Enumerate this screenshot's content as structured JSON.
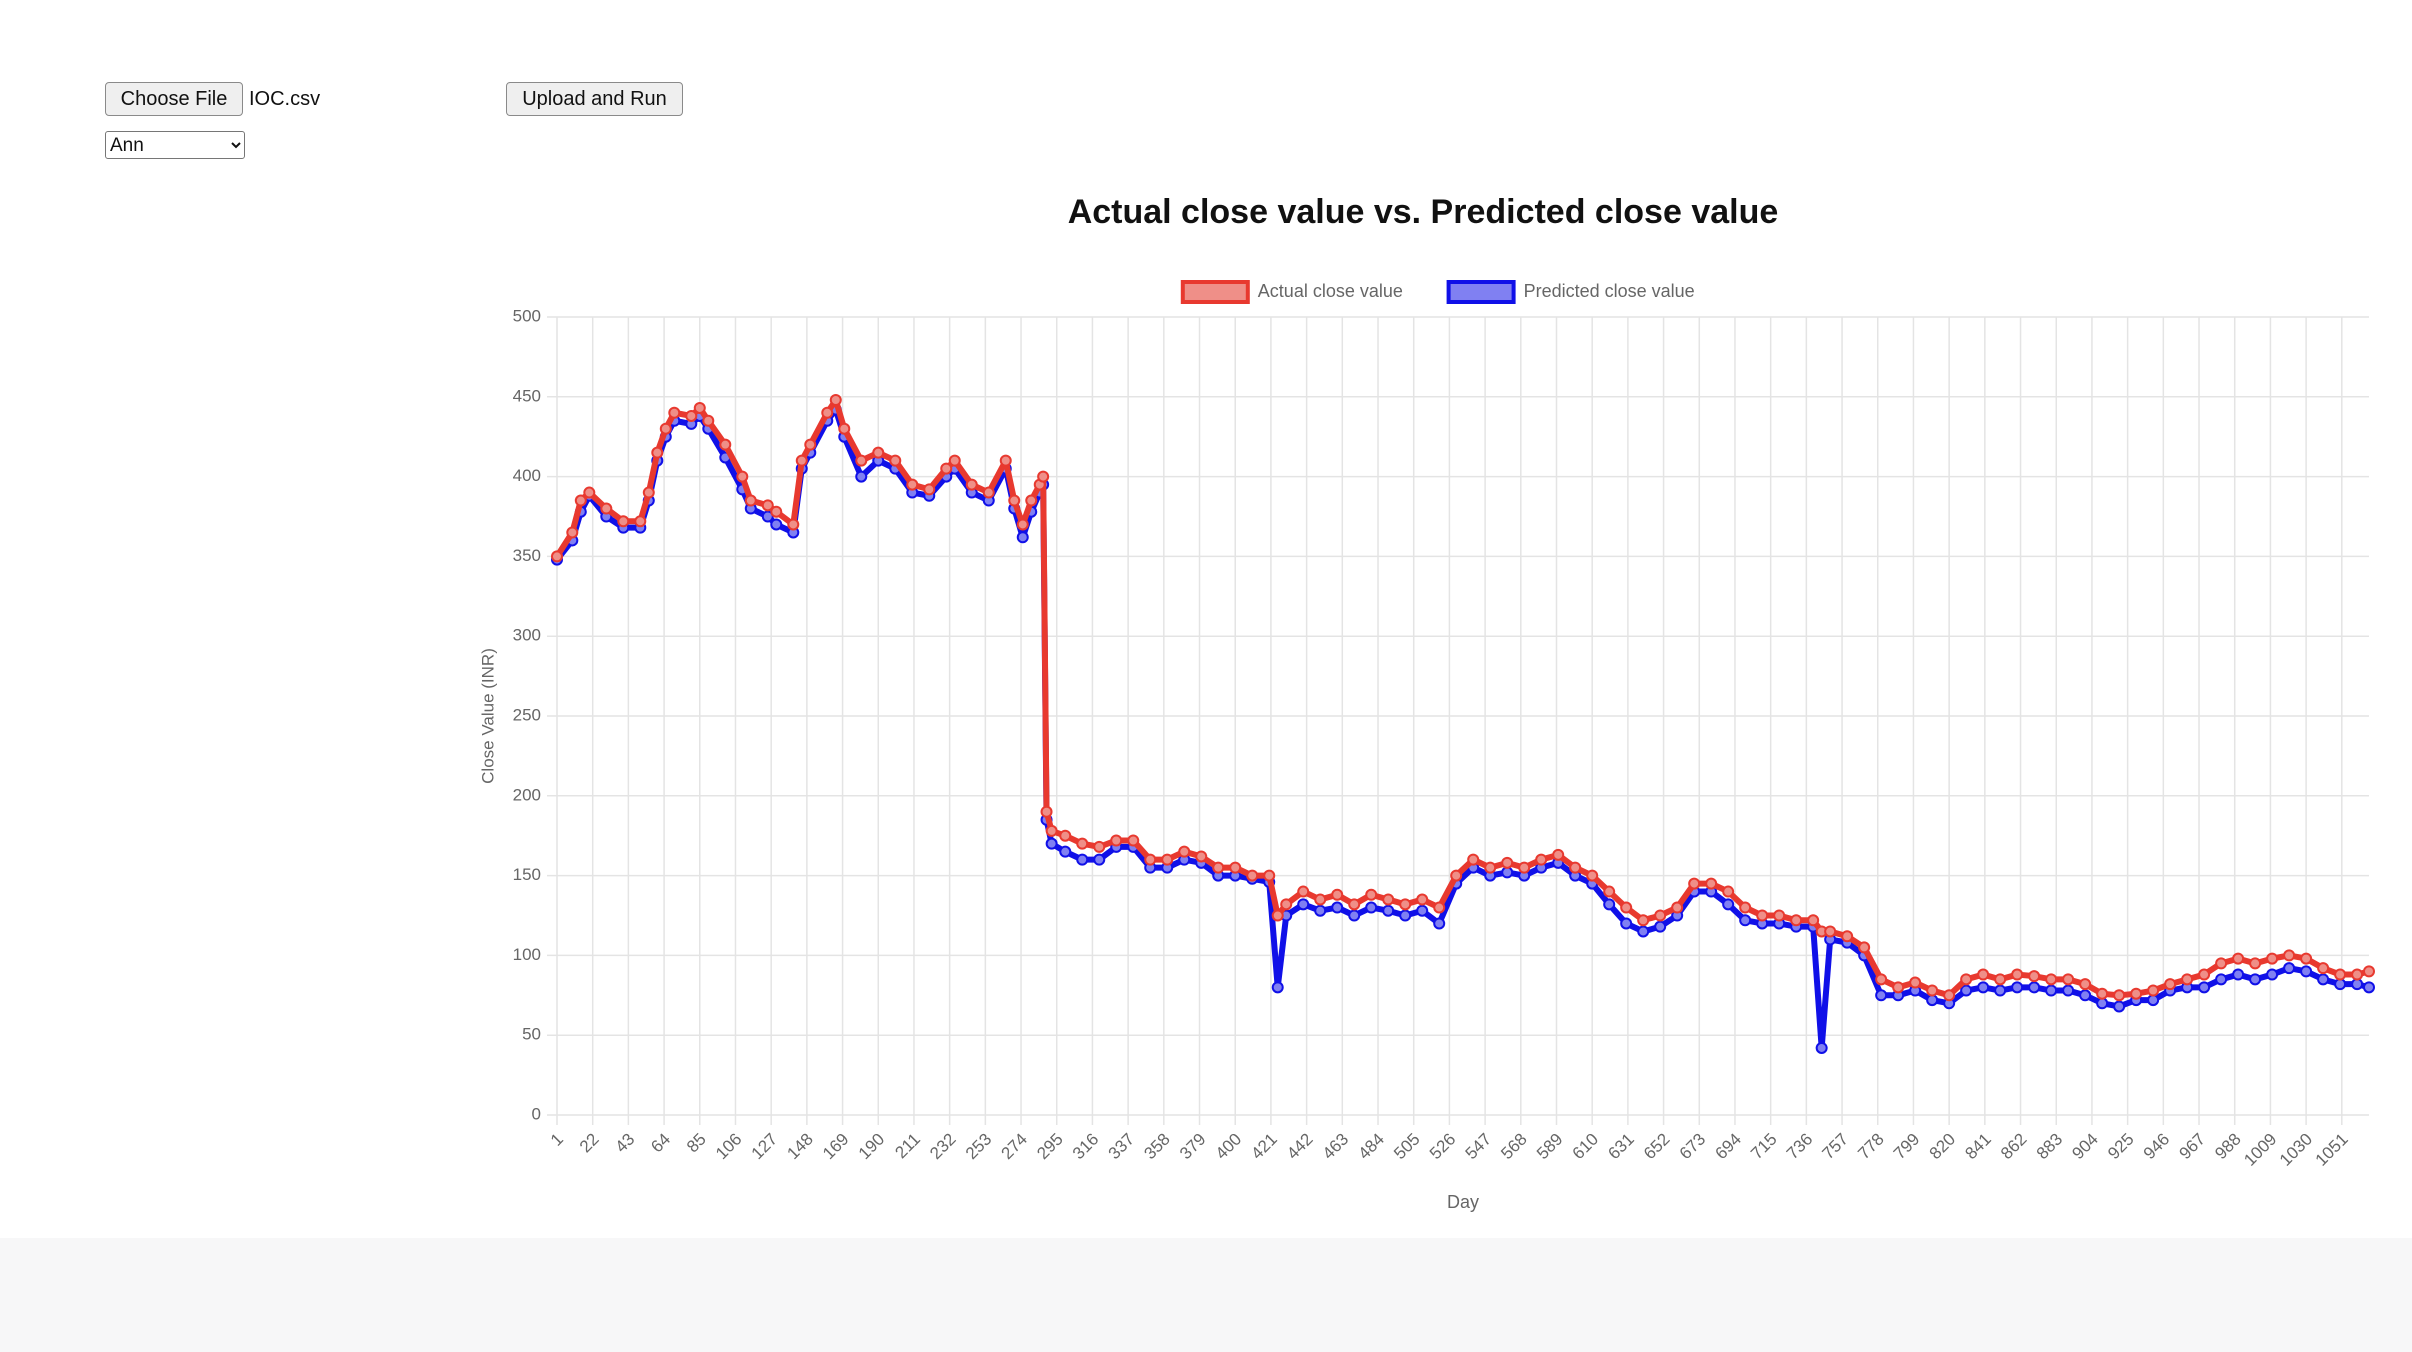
{
  "controls": {
    "file_button": "Choose File",
    "file_name": "IOC.csv",
    "upload_button": "Upload and Run",
    "model_select": "Ann"
  },
  "chart_data": {
    "type": "line",
    "title": "Actual close value vs. Predicted close value",
    "x_label": "Day",
    "y_label": "Close Value (INR)",
    "x": [
      1,
      10,
      15,
      20,
      30,
      40,
      50,
      55,
      60,
      65,
      70,
      80,
      85,
      90,
      100,
      110,
      115,
      125,
      130,
      140,
      145,
      150,
      160,
      165,
      170,
      180,
      190,
      200,
      210,
      220,
      230,
      235,
      245,
      255,
      265,
      270,
      275,
      280,
      285,
      287,
      289,
      292,
      300,
      310,
      320,
      330,
      340,
      350,
      360,
      370,
      380,
      390,
      400,
      410,
      420,
      425,
      430,
      440,
      450,
      460,
      470,
      480,
      490,
      500,
      510,
      520,
      530,
      540,
      550,
      560,
      570,
      580,
      590,
      600,
      610,
      620,
      630,
      640,
      650,
      660,
      670,
      680,
      690,
      700,
      710,
      720,
      730,
      740,
      745,
      750,
      760,
      770,
      780,
      790,
      800,
      810,
      820,
      830,
      840,
      850,
      860,
      870,
      880,
      890,
      900,
      910,
      920,
      930,
      940,
      950,
      960,
      970,
      980,
      990,
      1000,
      1010,
      1020,
      1030,
      1040,
      1050,
      1060,
      1067
    ],
    "series": [
      {
        "name": "Actual close value",
        "color": "#e8392f",
        "fill": "#ef8f88",
        "values": [
          350,
          365,
          385,
          390,
          380,
          372,
          372,
          390,
          415,
          430,
          440,
          438,
          443,
          435,
          420,
          400,
          385,
          382,
          378,
          370,
          410,
          420,
          440,
          448,
          430,
          410,
          415,
          410,
          395,
          392,
          405,
          410,
          395,
          390,
          410,
          385,
          370,
          385,
          395,
          400,
          190,
          178,
          175,
          170,
          168,
          172,
          172,
          160,
          160,
          165,
          162,
          155,
          155,
          150,
          150,
          125,
          132,
          140,
          135,
          138,
          132,
          138,
          135,
          132,
          135,
          130,
          150,
          160,
          155,
          158,
          155,
          160,
          163,
          155,
          150,
          140,
          130,
          122,
          125,
          130,
          145,
          145,
          140,
          130,
          125,
          125,
          122,
          122,
          115,
          115,
          112,
          105,
          85,
          80,
          83,
          78,
          75,
          85,
          88,
          85,
          88,
          87,
          85,
          85,
          82,
          76,
          75,
          76,
          78,
          82,
          85,
          88,
          95,
          98,
          95,
          98,
          100,
          98,
          92,
          88,
          88,
          90
        ]
      },
      {
        "name": "Predicted close value",
        "color": "#1010e8",
        "fill": "#8080f2",
        "values": [
          348,
          360,
          378,
          388,
          375,
          368,
          368,
          385,
          410,
          425,
          435,
          433,
          438,
          430,
          412,
          392,
          380,
          375,
          370,
          365,
          405,
          415,
          435,
          442,
          425,
          400,
          410,
          405,
          390,
          388,
          400,
          405,
          390,
          385,
          405,
          380,
          362,
          378,
          390,
          395,
          185,
          170,
          165,
          160,
          160,
          168,
          168,
          155,
          155,
          160,
          158,
          150,
          150,
          148,
          146,
          80,
          125,
          132,
          128,
          130,
          125,
          130,
          128,
          125,
          128,
          120,
          145,
          155,
          150,
          152,
          150,
          155,
          158,
          150,
          145,
          132,
          120,
          115,
          118,
          125,
          140,
          140,
          132,
          122,
          120,
          120,
          118,
          118,
          42,
          110,
          108,
          100,
          75,
          75,
          78,
          72,
          70,
          78,
          80,
          78,
          80,
          80,
          78,
          78,
          75,
          70,
          68,
          72,
          72,
          78,
          80,
          80,
          85,
          88,
          85,
          88,
          92,
          90,
          85,
          82,
          82,
          80
        ]
      }
    ],
    "xlim": [
      1,
      1067
    ],
    "xticks": [
      1,
      22,
      43,
      64,
      85,
      106,
      127,
      148,
      169,
      190,
      211,
      232,
      253,
      274,
      295,
      316,
      337,
      358,
      379,
      400,
      421,
      442,
      463,
      484,
      505,
      526,
      547,
      568,
      589,
      610,
      631,
      652,
      673,
      694,
      715,
      736,
      757,
      778,
      799,
      820,
      841,
      862,
      883,
      904,
      925,
      946,
      967,
      988,
      1009,
      1030,
      1051
    ],
    "ylim": [
      0,
      500
    ],
    "yticks": [
      0,
      50,
      100,
      150,
      200,
      250,
      300,
      350,
      400,
      450,
      500
    ],
    "grid": true,
    "legend": "top"
  }
}
